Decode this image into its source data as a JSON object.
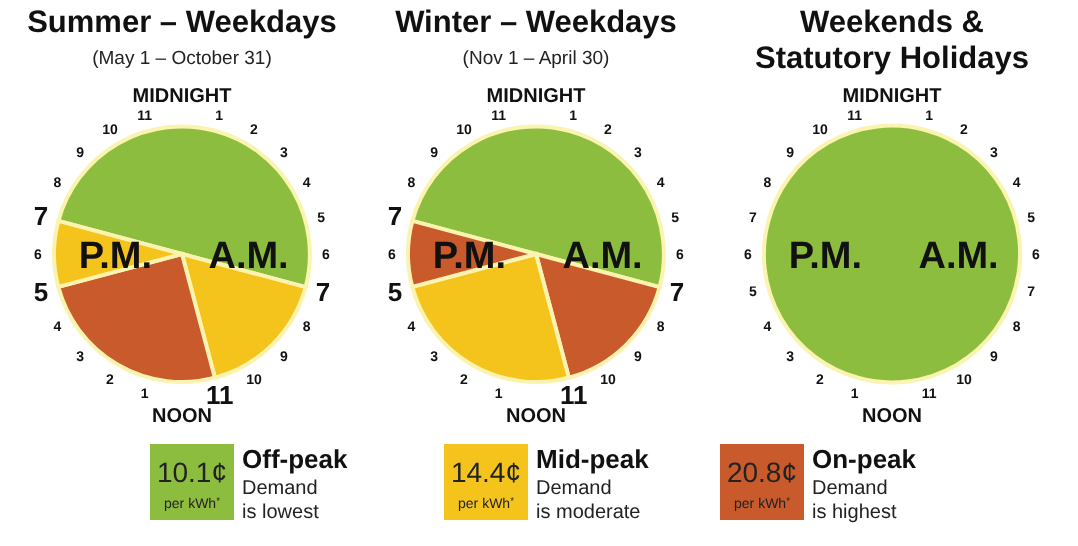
{
  "chart_data": [
    {
      "type": "pie",
      "title": "Summer – Weekdays",
      "subtitle": "(May 1 – October 31)",
      "categories": [
        null,
        null,
        null,
        null
      ],
      "values": [
        50,
        16.7,
        25,
        8.3
      ],
      "colors": [
        "#8dbd3e",
        "#f5c41c",
        "#c95a2b",
        "#f5c41c"
      ],
      "annotations": [
        "MIDNIGHT",
        "1",
        "2",
        "3",
        "4",
        "5",
        "6",
        "7",
        "8",
        "9",
        "10",
        "11",
        "NOON",
        "1",
        "2",
        "3",
        "4",
        "5",
        "6",
        "7",
        "8",
        "9",
        "10",
        "11",
        "A.M.",
        "P.M."
      ]
    },
    {
      "type": "pie",
      "title": "Winter – Weekdays",
      "subtitle": "(Nov 1 – April 30)",
      "categories": [
        null,
        null,
        null,
        null
      ],
      "values": [
        50,
        16.7,
        25,
        8.3
      ],
      "colors": [
        "#8dbd3e",
        "#c95a2b",
        "#f5c41c",
        "#c95a2b"
      ],
      "annotations": [
        "MIDNIGHT",
        "1",
        "2",
        "3",
        "4",
        "5",
        "6",
        "7",
        "8",
        "9",
        "10",
        "11",
        "NOON",
        "1",
        "2",
        "3",
        "4",
        "5",
        "6",
        "7",
        "8",
        "9",
        "10",
        "11",
        "A.M.",
        "P.M."
      ]
    },
    {
      "type": "pie",
      "title": "Weekends & Statutory Holidays",
      "categories": [
        null
      ],
      "values": [
        100
      ],
      "colors": [
        "#8dbd3e"
      ],
      "annotations": [
        "MIDNIGHT",
        "1",
        "2",
        "3",
        "4",
        "5",
        "6",
        "7",
        "8",
        "9",
        "10",
        "11",
        "NOON",
        "1",
        "2",
        "3",
        "4",
        "5",
        "6",
        "7",
        "8",
        "9",
        "10",
        "11",
        "A.M.",
        "P.M."
      ]
    },
    {
      "type": "other",
      "categories": [
        "Off-peak",
        "Mid-peak",
        "On-peak"
      ],
      "colors": [
        "#8dbd3e",
        "#f5c41c",
        "#c95a2b"
      ],
      "annotations": [
        "10.1¢",
        "per kWh$^{*}$",
        "Demand",
        "is lowest",
        "14.4¢",
        "per kWh$^{*}$",
        "Demand",
        "is moderate",
        "20.8¢",
        "per kWh$^{*}$",
        "Demand",
        "is highest"
      ]
    }
  ]
}
